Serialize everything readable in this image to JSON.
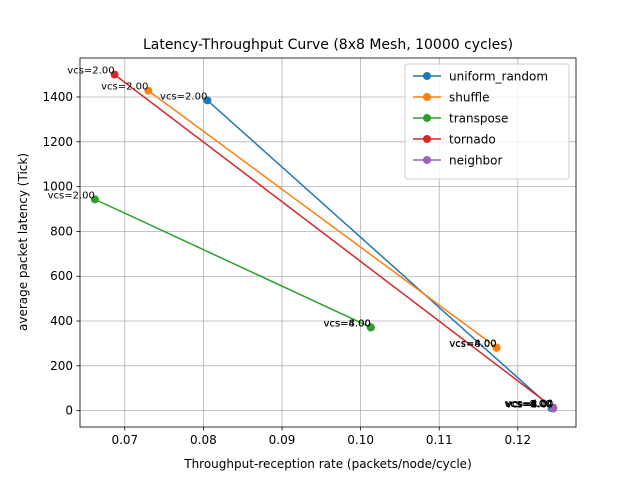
{
  "chart_data": {
    "type": "line",
    "title": "Latency-Throughput Curve (8x8 Mesh, 10000 cycles)",
    "xlabel": "Throughput-reception rate (packets/node/cycle)",
    "ylabel": "average packet latency (Tick)",
    "xlim": [
      0.0643,
      0.1274
    ],
    "ylim": [
      -73,
      1574
    ],
    "xticks": [
      0.07,
      0.08,
      0.09,
      0.1,
      0.11,
      0.12
    ],
    "xtick_labels": [
      "0.07",
      "0.08",
      "0.09",
      "0.10",
      "0.11",
      "0.12"
    ],
    "yticks": [
      0,
      200,
      400,
      600,
      800,
      1000,
      1200,
      1400
    ],
    "ytick_labels": [
      "0",
      "200",
      "400",
      "600",
      "800",
      "1000",
      "1200",
      "1400"
    ],
    "grid": true,
    "legend_position": "top-right",
    "series": [
      {
        "name": "uniform_random",
        "color": "#1f77b4",
        "points": [
          {
            "x": 0.0805,
            "y": 1385,
            "label": "vcs=2.00"
          },
          {
            "x": 0.1243,
            "y": 12,
            "label": "vcs=4.00"
          },
          {
            "x": 0.1243,
            "y": 11,
            "label": "vcs=8.00"
          }
        ]
      },
      {
        "name": "shuffle",
        "color": "#ff7f0e",
        "points": [
          {
            "x": 0.073,
            "y": 1428,
            "label": "vcs=2.00"
          },
          {
            "x": 0.1173,
            "y": 282,
            "label": "vcs=4.00"
          },
          {
            "x": 0.1173,
            "y": 280,
            "label": "vcs=8.00"
          }
        ]
      },
      {
        "name": "transpose",
        "color": "#2ca02c",
        "points": [
          {
            "x": 0.0662,
            "y": 943,
            "label": "vcs=2.00"
          },
          {
            "x": 0.1013,
            "y": 372,
            "label": "vcs=4.00"
          },
          {
            "x": 0.1013,
            "y": 371,
            "label": "vcs=8.00"
          }
        ]
      },
      {
        "name": "tornado",
        "color": "#d62728",
        "points": [
          {
            "x": 0.0687,
            "y": 1500,
            "label": "vcs=2.00"
          },
          {
            "x": 0.1245,
            "y": 13,
            "label": "vcs=4.00"
          },
          {
            "x": 0.1245,
            "y": 12,
            "label": "vcs=8.00"
          }
        ]
      },
      {
        "name": "neighbor",
        "color": "#9467bd",
        "points": [
          {
            "x": 0.1245,
            "y": 10,
            "label": "vcs=2.00"
          },
          {
            "x": 0.1245,
            "y": 10,
            "label": "vcs=4.00"
          },
          {
            "x": 0.1245,
            "y": 10,
            "label": "vcs=8.00"
          }
        ]
      }
    ]
  }
}
